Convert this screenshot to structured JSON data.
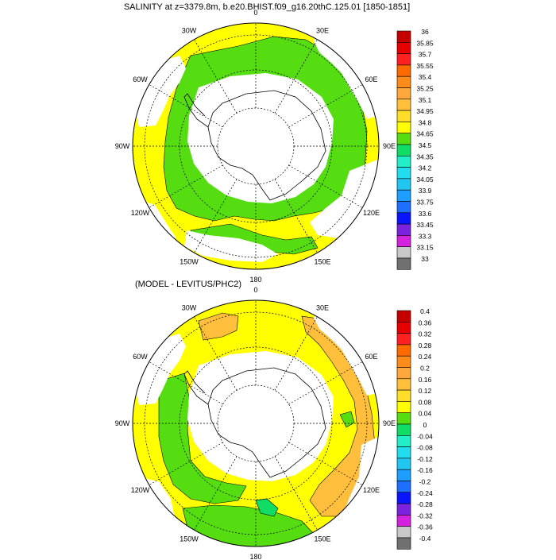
{
  "panels": [
    {
      "id": "top",
      "title": "SALINITY at z=3379.8m, b.e20.BHIST.f09_g16.20thC.125.01 [1850-1851]",
      "colorbar": {
        "labels": [
          "36",
          "35.85",
          "35.7",
          "35.55",
          "35.4",
          "35.25",
          "35.1",
          "34.95",
          "34.8",
          "34.65",
          "34.5",
          "34.35",
          "34.2",
          "34.05",
          "33.9",
          "33.75",
          "33.6",
          "33.45",
          "33.3",
          "33.15",
          "33"
        ],
        "colors": [
          "#c40000",
          "#e80000",
          "#ff2020",
          "#ff6a00",
          "#ff8c1a",
          "#ffa63c",
          "#ffbe3c",
          "#ffdd2a",
          "#ffff00",
          "#55dd11",
          "#11dd66",
          "#22eec8",
          "#22ddee",
          "#22c4f0",
          "#1e9eff",
          "#1e6eff",
          "#0a14ff",
          "#7a22dd",
          "#d422dd",
          "#c8c8c8",
          "#707070"
        ]
      },
      "longitude_labels": [
        "0",
        "30E",
        "60E",
        "90E",
        "120E",
        "150E",
        "180",
        "150W",
        "120W",
        "90W",
        "60W",
        "30W"
      ],
      "field_colors": {
        "ocean": "#ffff00",
        "region": "#55dd11"
      }
    },
    {
      "id": "bottom",
      "title": "(MODEL - LEVITUS/PHC2)",
      "colorbar": {
        "labels": [
          "0.4",
          "0.36",
          "0.32",
          "0.28",
          "0.24",
          "0.2",
          "0.16",
          "0.12",
          "0.08",
          "0.04",
          "0",
          "-0.04",
          "-0.08",
          "-0.12",
          "-0.16",
          "-0.2",
          "-0.24",
          "-0.28",
          "-0.32",
          "-0.36",
          "-0.4"
        ],
        "colors": [
          "#c40000",
          "#e80000",
          "#ff2020",
          "#ff6a00",
          "#ff8c1a",
          "#ffa63c",
          "#ffbe3c",
          "#ffdd2a",
          "#ffff00",
          "#55dd11",
          "#11dd66",
          "#22eec8",
          "#22ddee",
          "#22c4f0",
          "#1e9eff",
          "#1e6eff",
          "#0a14ff",
          "#7a22dd",
          "#d422dd",
          "#c8c8c8",
          "#707070"
        ]
      },
      "longitude_labels": [
        "0",
        "30E",
        "60E",
        "90E",
        "120E",
        "150E",
        "180",
        "150W",
        "120W",
        "90W",
        "60W",
        "30W"
      ],
      "field_colors": {
        "ocean": "#ffff00",
        "region": "#55dd11",
        "orange": "#ffbe3c",
        "teal": "#11dd66"
      }
    }
  ]
}
